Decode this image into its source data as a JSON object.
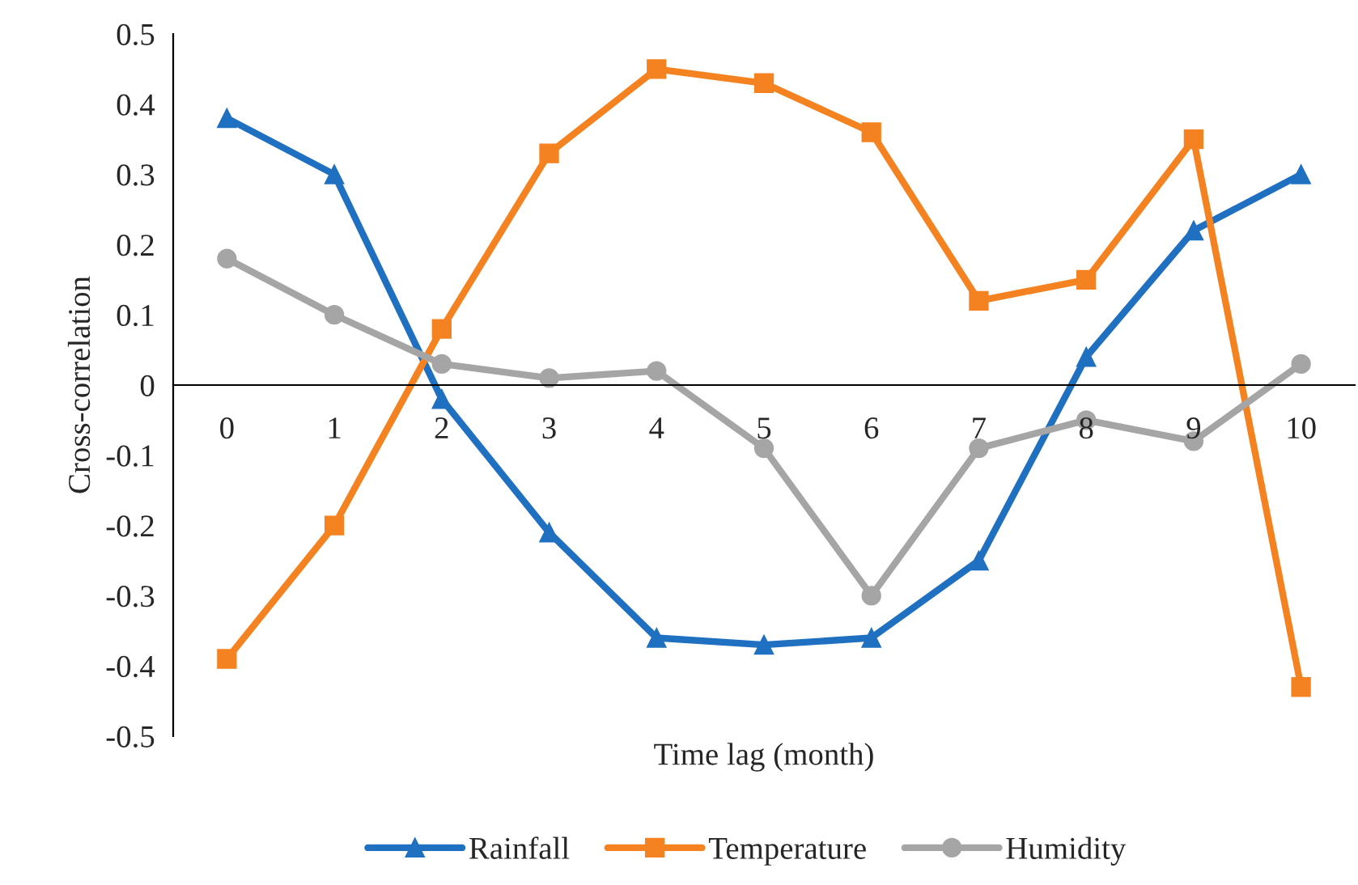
{
  "chart_data": {
    "type": "line",
    "xlabel": "Time lag (month)",
    "ylabel": "Cross-correlation",
    "categories": [
      "0",
      "1",
      "2",
      "3",
      "4",
      "5",
      "6",
      "7",
      "8",
      "9",
      "10"
    ],
    "series": [
      {
        "name": "Rainfall",
        "color": "#1f70c1",
        "marker": "triangle",
        "values": [
          0.38,
          0.3,
          -0.02,
          -0.21,
          -0.36,
          -0.37,
          -0.36,
          -0.25,
          0.04,
          0.22,
          0.3
        ]
      },
      {
        "name": "Temperature",
        "color": "#f58220",
        "marker": "square",
        "values": [
          -0.39,
          -0.2,
          0.08,
          0.33,
          0.45,
          0.43,
          0.36,
          0.12,
          0.15,
          0.35,
          -0.43
        ]
      },
      {
        "name": "Humidity",
        "color": "#a5a5a5",
        "marker": "circle",
        "values": [
          0.18,
          0.1,
          0.03,
          0.01,
          0.02,
          -0.09,
          -0.3,
          -0.09,
          -0.05,
          -0.08,
          0.03
        ]
      }
    ],
    "ylim": [
      -0.5,
      0.5
    ],
    "yticks": [
      -0.5,
      -0.4,
      -0.3,
      -0.2,
      -0.1,
      0,
      0.1,
      0.2,
      0.3,
      0.4,
      0.5
    ],
    "grid": false,
    "legend": "bottom",
    "line_style": "solid"
  }
}
